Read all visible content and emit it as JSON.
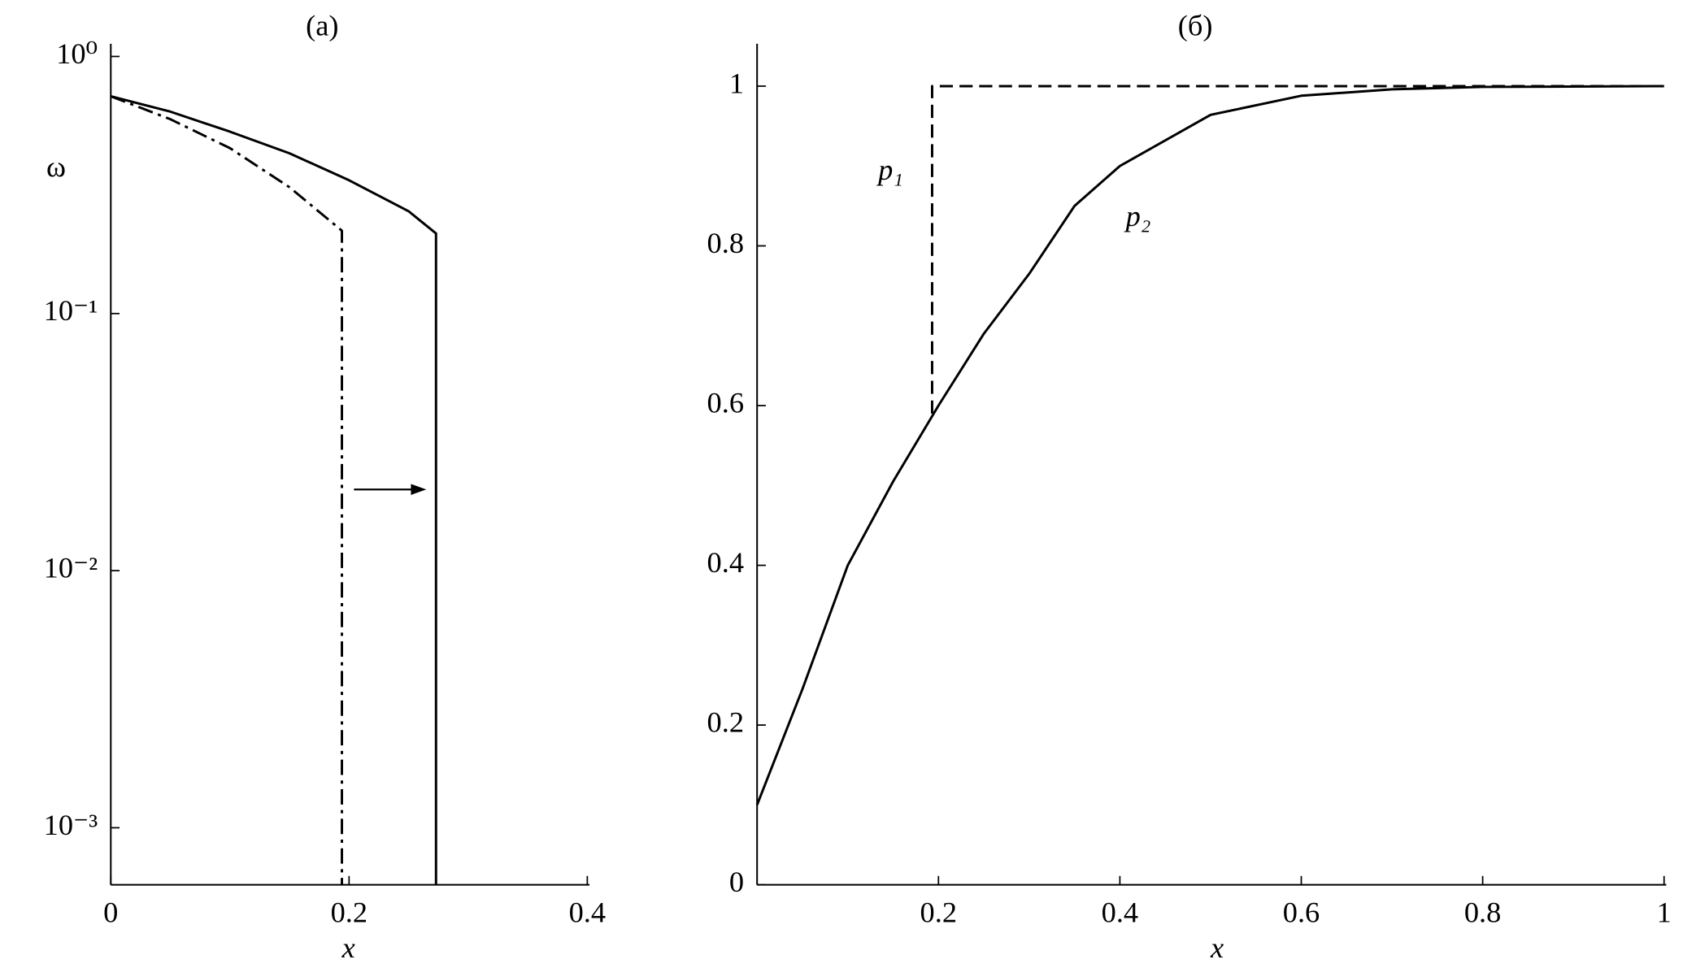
{
  "chart_data": [
    {
      "type": "line",
      "title": "(a)",
      "xlabel": "x",
      "ylabel": "ω",
      "log_y": true,
      "xlim": [
        0,
        0.4
      ],
      "xticks": [
        0,
        0.2,
        0.4
      ],
      "ylim": [
        0.0006,
        1.12
      ],
      "yticks": [
        {
          "value": 1,
          "label": "10⁰"
        },
        {
          "value": 0.1,
          "label": "10⁻¹"
        },
        {
          "value": 0.01,
          "label": "10⁻²"
        },
        {
          "value": 0.001,
          "label": "10⁻³"
        }
      ],
      "series": [
        {
          "color": "#000000",
          "line_style": "solid",
          "x": [
            0,
            0.05,
            0.1,
            0.15,
            0.2,
            0.25,
            0.273,
            0.273
          ],
          "values": [
            0.7,
            0.61,
            0.51,
            0.42,
            0.33,
            0.25,
            0.205,
            0.0006
          ]
        },
        {
          "color": "#000000",
          "line_style": "dashdot",
          "x": [
            0,
            0.05,
            0.1,
            0.15,
            0.194,
            0.194
          ],
          "values": [
            0.7,
            0.57,
            0.44,
            0.31,
            0.21,
            0.0006
          ]
        }
      ]
    },
    {
      "type": "line",
      "title": "(б)",
      "xlabel": "x",
      "log_y": false,
      "xlim": [
        0,
        1
      ],
      "xticks": [
        0.2,
        0.4,
        0.6,
        0.8,
        1
      ],
      "ylim": [
        0,
        1.053
      ],
      "yticks": [
        0,
        0.2,
        0.4,
        0.6,
        0.8,
        1
      ],
      "series": [
        {
          "name": "p₁",
          "color": "#000000",
          "line_style": "dashed",
          "x": [
            0.193,
            0.193,
            1
          ],
          "values": [
            0.59,
            1,
            1
          ]
        },
        {
          "name": "p₂",
          "color": "#000000",
          "line_style": "solid",
          "x": [
            0,
            0.05,
            0.1,
            0.15,
            0.2,
            0.25,
            0.3,
            0.35,
            0.4,
            0.5,
            0.6,
            0.7,
            0.8,
            1
          ],
          "values": [
            0.1,
            0.245,
            0.4,
            0.505,
            0.6,
            0.69,
            0.765,
            0.85,
            0.9,
            0.964,
            0.988,
            0.996,
            0.999,
            1
          ]
        }
      ]
    }
  ]
}
